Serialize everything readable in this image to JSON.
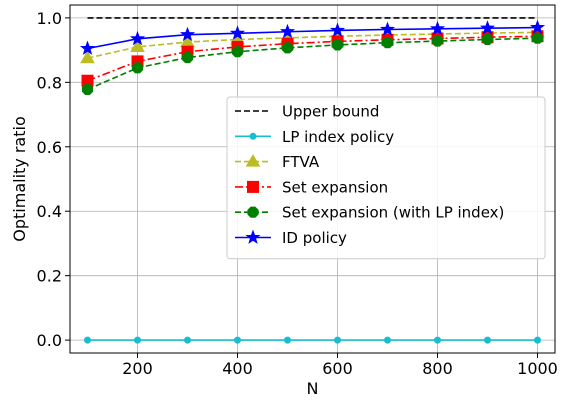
{
  "chart_data": {
    "type": "line",
    "title": "",
    "xlabel": "N",
    "ylabel": "Optimality ratio",
    "xlim": [
      65,
      1035
    ],
    "ylim": [
      -0.04,
      1.04
    ],
    "x_ticks": [
      200,
      400,
      600,
      800,
      1000
    ],
    "y_ticks": [
      0.0,
      0.2,
      0.4,
      0.6,
      0.8,
      1.0
    ],
    "x_tick_labels": [
      "200",
      "400",
      "600",
      "800",
      "1000"
    ],
    "y_tick_labels": [
      "0.0",
      "0.2",
      "0.4",
      "0.6",
      "0.8",
      "1.0"
    ],
    "grid": true,
    "legend_position": "center-right",
    "x": [
      100,
      200,
      300,
      400,
      500,
      600,
      700,
      800,
      900,
      1000
    ],
    "series": [
      {
        "name": "Upper bound",
        "color": "#000000",
        "dash": "dashed",
        "marker": "none",
        "values": [
          1.0,
          1.0,
          1.0,
          1.0,
          1.0,
          1.0,
          1.0,
          1.0,
          1.0,
          1.0
        ]
      },
      {
        "name": "LP index policy",
        "color": "#17becf",
        "dash": "solid",
        "marker": "circle-small",
        "values": [
          0.0,
          0.0,
          0.0,
          0.0,
          0.0,
          0.0,
          0.0,
          0.0,
          0.0,
          0.0
        ]
      },
      {
        "name": "FTVA",
        "color": "#bcbd22",
        "dash": "dashed",
        "marker": "triangle",
        "values": [
          0.875,
          0.91,
          0.925,
          0.933,
          0.938,
          0.943,
          0.947,
          0.95,
          0.953,
          0.955
        ]
      },
      {
        "name": "Set expansion",
        "color": "#ff0000",
        "dash": "dashdot",
        "marker": "square",
        "values": [
          0.805,
          0.865,
          0.895,
          0.91,
          0.92,
          0.927,
          0.932,
          0.936,
          0.94,
          0.943
        ]
      },
      {
        "name": "Set expansion (with LP index)",
        "color": "#008000",
        "dash": "dashed",
        "marker": "octagon",
        "values": [
          0.778,
          0.845,
          0.877,
          0.895,
          0.907,
          0.916,
          0.923,
          0.928,
          0.933,
          0.937
        ]
      },
      {
        "name": "ID policy",
        "color": "#0000ff",
        "dash": "solid",
        "marker": "star",
        "values": [
          0.905,
          0.935,
          0.948,
          0.952,
          0.957,
          0.961,
          0.964,
          0.966,
          0.968,
          0.97
        ]
      }
    ]
  }
}
